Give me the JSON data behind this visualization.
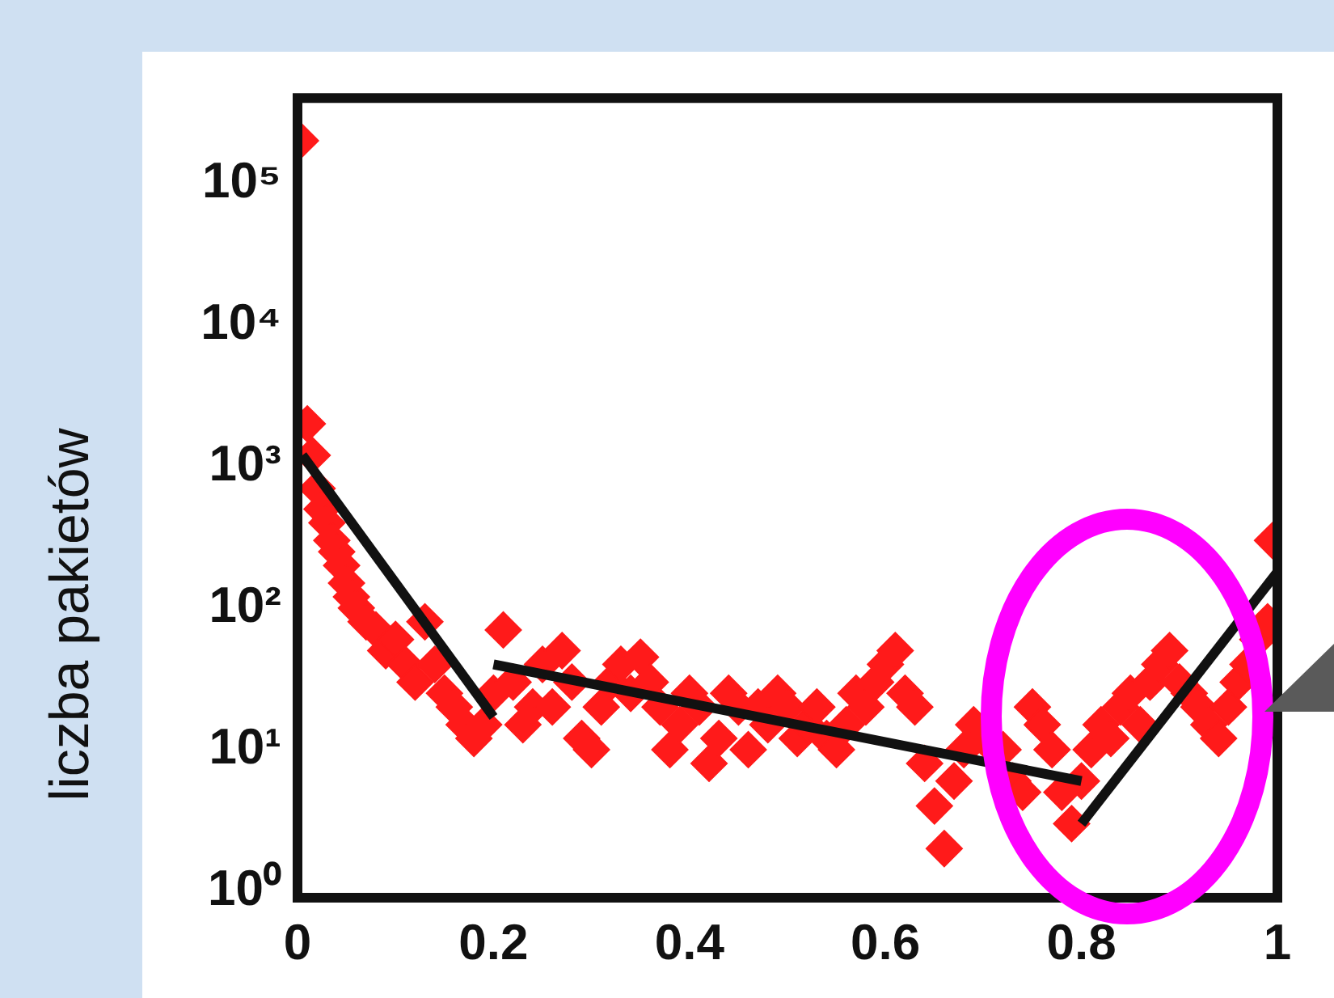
{
  "chart_data": {
    "type": "scatter",
    "ylabel": "liczba pakietów",
    "log": true,
    "grid": false,
    "xlim": [
      0,
      1
    ],
    "xticks": [
      0,
      0.2,
      0.4,
      0.6,
      0.8,
      1
    ],
    "ylim": [
      0.9,
      400000
    ],
    "yticks": [
      {
        "value": 1,
        "label": "10⁰"
      },
      {
        "value": 10,
        "label": "10¹"
      },
      {
        "value": 100,
        "label": "10²"
      },
      {
        "value": 1000,
        "label": "10³"
      },
      {
        "value": 10000,
        "label": "10⁴"
      },
      {
        "value": 100000,
        "label": "10⁵"
      }
    ],
    "series": [
      {
        "marker": "diamond",
        "color": "#ff1a1a",
        "x": [
          0.003,
          0.01,
          0.015,
          0.02,
          0.025,
          0.03,
          0.035,
          0.04,
          0.045,
          0.05,
          0.055,
          0.06,
          0.07,
          0.08,
          0.09,
          0.1,
          0.11,
          0.12,
          0.13,
          0.14,
          0.15,
          0.16,
          0.17,
          0.18,
          0.19,
          0.2,
          0.21,
          0.22,
          0.23,
          0.24,
          0.25,
          0.26,
          0.27,
          0.28,
          0.29,
          0.3,
          0.31,
          0.32,
          0.33,
          0.34,
          0.35,
          0.36,
          0.37,
          0.38,
          0.39,
          0.4,
          0.41,
          0.42,
          0.43,
          0.44,
          0.45,
          0.46,
          0.47,
          0.48,
          0.49,
          0.5,
          0.51,
          0.52,
          0.53,
          0.54,
          0.55,
          0.56,
          0.57,
          0.58,
          0.59,
          0.6,
          0.61,
          0.62,
          0.63,
          0.64,
          0.65,
          0.66,
          0.67,
          0.68,
          0.69,
          0.7,
          0.71,
          0.72,
          0.73,
          0.74,
          0.75,
          0.76,
          0.77,
          0.78,
          0.79,
          0.8,
          0.81,
          0.82,
          0.83,
          0.84,
          0.85,
          0.86,
          0.87,
          0.88,
          0.89,
          0.9,
          0.91,
          0.92,
          0.93,
          0.94,
          0.95,
          0.96,
          0.97,
          0.98,
          0.99,
          0.995
        ],
        "values": [
          200000,
          2000,
          1200,
          700,
          500,
          400,
          300,
          250,
          200,
          150,
          120,
          100,
          80,
          70,
          50,
          60,
          40,
          30,
          80,
          40,
          25,
          20,
          15,
          12,
          15,
          25,
          70,
          30,
          15,
          20,
          40,
          20,
          50,
          30,
          12,
          10,
          20,
          30,
          40,
          25,
          45,
          30,
          20,
          10,
          15,
          25,
          20,
          8,
          12,
          25,
          20,
          10,
          20,
          15,
          25,
          20,
          12,
          15,
          20,
          12,
          10,
          15,
          25,
          20,
          30,
          40,
          50,
          25,
          20,
          8,
          4,
          2,
          6,
          10,
          15,
          12,
          null,
          10,
          6,
          5,
          20,
          15,
          10,
          5,
          3,
          6,
          10,
          15,
          12,
          20,
          25,
          15,
          30,
          40,
          50,
          30,
          25,
          20,
          15,
          12,
          20,
          30,
          40,
          60,
          80,
          300
        ]
      },
      {
        "type": "line",
        "marker": "none",
        "color": "#111111",
        "x": [
          0.005,
          0.2
        ],
        "values": [
          1200,
          17
        ]
      },
      {
        "type": "line",
        "marker": "none",
        "color": "#111111",
        "x": [
          0.2,
          0.8
        ],
        "values": [
          40,
          6
        ]
      },
      {
        "type": "line",
        "marker": "none",
        "color": "#111111",
        "x": [
          0.8,
          1
        ],
        "values": [
          3,
          180
        ]
      }
    ]
  }
}
